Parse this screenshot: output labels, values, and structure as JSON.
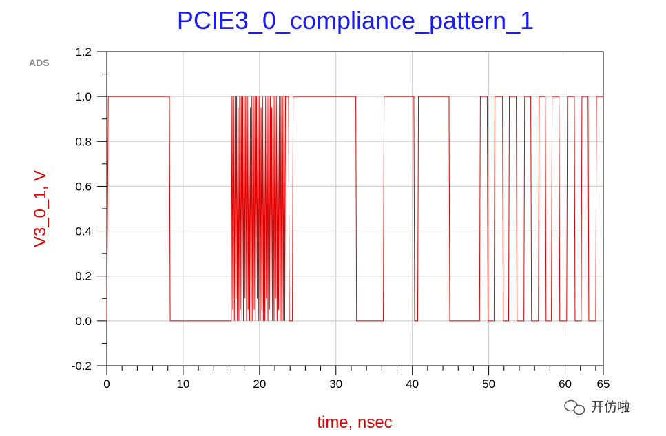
{
  "chart_data": {
    "type": "line",
    "title": "PCIE3_0_compliance_pattern_1",
    "xlabel": "time, nsec",
    "ylabel": "V3_0_1, V",
    "xlim": [
      0,
      65
    ],
    "ylim": [
      -0.2,
      1.2
    ],
    "xticks": [
      0,
      10,
      20,
      30,
      40,
      50,
      60,
      65
    ],
    "xtick_labels": [
      "0",
      "10",
      "20",
      "30",
      "40",
      "50",
      "60",
      "65"
    ],
    "yticks": [
      -0.2,
      0.0,
      0.2,
      0.4,
      0.6,
      0.8,
      1.0,
      1.2
    ],
    "ytick_labels": [
      "-0.2",
      "0.0",
      "0.2",
      "0.4",
      "0.6",
      "0.8",
      "1.0",
      "1.2"
    ],
    "grid": true,
    "legend": "none",
    "series": [
      {
        "color": "#e00000",
        "x": [
          0,
          0.2,
          8.2,
          8.3,
          16.3,
          16.4,
          16.5,
          16.6,
          16.7,
          16.8,
          16.9,
          17.0,
          17.1,
          17.2,
          17.3,
          17.4,
          17.5,
          17.6,
          17.7,
          17.8,
          17.9,
          18.0,
          18.1,
          18.2,
          18.3,
          18.4,
          18.5,
          18.6,
          18.7,
          18.8,
          18.9,
          19.0,
          19.1,
          19.2,
          19.3,
          19.4,
          19.5,
          19.6,
          19.7,
          19.8,
          19.9,
          20.0,
          20.1,
          20.2,
          20.3,
          20.4,
          20.5,
          20.6,
          20.7,
          20.8,
          20.9,
          21.0,
          21.1,
          21.2,
          21.3,
          21.4,
          21.5,
          21.6,
          21.7,
          21.8,
          21.9,
          22.0,
          22.1,
          22.2,
          22.3,
          22.4,
          22.5,
          22.6,
          22.7,
          22.8,
          22.9,
          23.0,
          23.1,
          23.2,
          23.3,
          23.4,
          23.8,
          23.9,
          24.3,
          24.4,
          32.6,
          32.7,
          36.2,
          36.3,
          40.2,
          40.3,
          40.7,
          40.8,
          44.8,
          44.9,
          48.8,
          48.9,
          49.8,
          49.9,
          50.7,
          50.8,
          51.8,
          51.9,
          52.6,
          52.7,
          53.6,
          53.7,
          54.6,
          54.7,
          55.5,
          55.6,
          56.5,
          56.6,
          57.4,
          57.5,
          58.2,
          58.3,
          59.2,
          59.3,
          60.2,
          60.3,
          61.2,
          61.3,
          62.1,
          62.2,
          63.0,
          63.1,
          64.0,
          64.1,
          65.0
        ],
        "y": [
          0.0,
          1.0,
          1.0,
          0.0,
          0.0,
          1.0,
          0.05,
          1.0,
          0.0,
          1.0,
          0.1,
          1.0,
          0.0,
          0.95,
          0.0,
          1.0,
          0.05,
          1.0,
          0.0,
          1.0,
          0.0,
          1.0,
          0.1,
          1.0,
          0.0,
          1.0,
          0.05,
          1.0,
          0.0,
          0.95,
          0.0,
          1.0,
          0.0,
          1.0,
          0.05,
          1.0,
          0.0,
          1.0,
          0.1,
          1.0,
          0.0,
          1.0,
          0.0,
          0.95,
          0.05,
          1.0,
          0.0,
          1.0,
          0.0,
          1.0,
          0.1,
          1.0,
          0.0,
          1.0,
          0.05,
          1.0,
          0.0,
          0.95,
          0.0,
          1.0,
          0.0,
          1.0,
          0.1,
          1.0,
          0.0,
          1.0,
          0.05,
          1.0,
          0.0,
          1.0,
          0.0,
          1.0,
          0.0,
          1.0,
          0.0,
          1.0,
          1.0,
          0.0,
          0.0,
          1.0,
          1.0,
          0.0,
          0.0,
          1.0,
          1.0,
          0.0,
          0.0,
          1.0,
          1.0,
          0.0,
          0.0,
          1.0,
          1.0,
          0.0,
          0.0,
          1.0,
          1.0,
          0.0,
          0.0,
          1.0,
          1.0,
          0.0,
          0.0,
          1.0,
          1.0,
          0.0,
          0.0,
          1.0,
          1.0,
          0.0,
          0.0,
          1.0,
          1.0,
          0.0,
          0.0,
          1.0,
          1.0,
          0.0,
          0.0,
          1.0,
          1.0,
          0.0,
          0.0,
          1.0,
          1.0
        ]
      }
    ]
  },
  "badge": {
    "ads": "ADS"
  },
  "watermark": {
    "text": "开仿啦",
    "icon": "wechat-bubbles-icon"
  }
}
